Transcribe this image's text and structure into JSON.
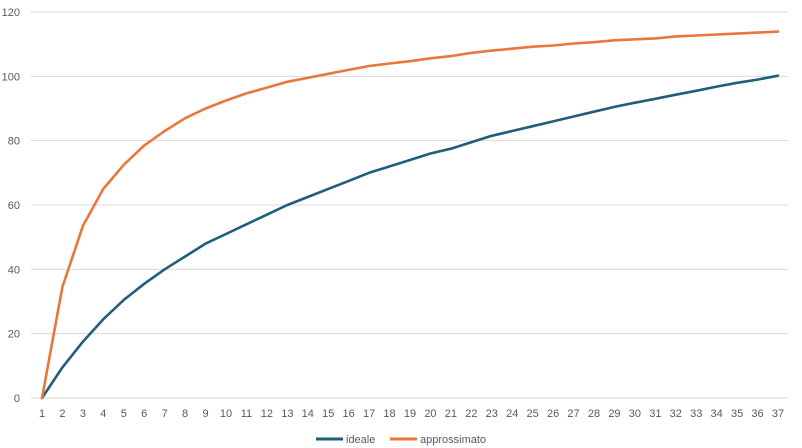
{
  "chart_data": {
    "type": "line",
    "x": [
      1,
      2,
      3,
      4,
      5,
      6,
      7,
      8,
      9,
      10,
      11,
      12,
      13,
      14,
      15,
      16,
      17,
      18,
      19,
      20,
      21,
      22,
      23,
      24,
      25,
      26,
      27,
      28,
      29,
      30,
      31,
      32,
      33,
      34,
      35,
      36,
      37
    ],
    "series": [
      {
        "name": "ideale",
        "color": "#1f5f7a",
        "values": [
          0,
          9.5,
          17.5,
          24.5,
          30.5,
          35.5,
          40,
          44,
          48,
          51,
          54,
          57,
          60,
          62.5,
          65,
          67.5,
          70,
          72,
          74,
          76,
          77.5,
          79.5,
          81.5,
          83,
          84.5,
          86,
          87.5,
          89,
          90.5,
          91.8,
          93,
          94.3,
          95.5,
          96.8,
          98,
          99,
          100.2
        ]
      },
      {
        "name": "approssimato",
        "color": "#e8773a",
        "values": [
          0,
          34.5,
          53.5,
          65,
          72.5,
          78.5,
          83,
          87,
          90,
          92.5,
          94.7,
          96.5,
          98.3,
          99.5,
          100.8,
          102,
          103.2,
          104,
          104.7,
          105.6,
          106.3,
          107.3,
          108,
          108.6,
          109.2,
          109.6,
          110.2,
          110.6,
          111.2,
          111.5,
          111.8,
          112.4,
          112.7,
          113,
          113.3,
          113.6,
          113.9
        ]
      }
    ],
    "ylim": [
      0,
      120
    ],
    "yticks": [
      0,
      20,
      40,
      60,
      80,
      100,
      120
    ],
    "grid": true,
    "legend": "bottom"
  }
}
